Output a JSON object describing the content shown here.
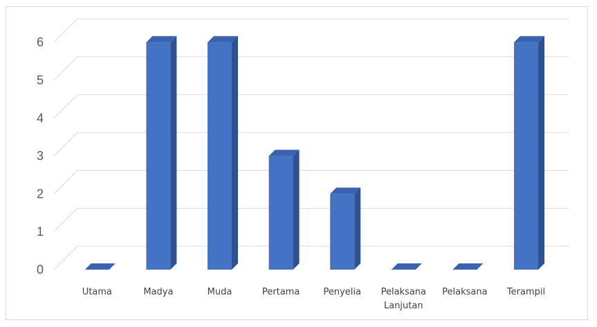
{
  "chart_data": {
    "type": "bar",
    "style": "3d-column",
    "categories": [
      [
        "Utama"
      ],
      [
        "Madya"
      ],
      [
        "Muda"
      ],
      [
        "Pertama"
      ],
      [
        "Penyelia"
      ],
      [
        "Pelaksana",
        "Lanjutan"
      ],
      [
        "Pelaksana"
      ],
      [
        "Terampil"
      ]
    ],
    "values": [
      0,
      6,
      6,
      3,
      2,
      0,
      0,
      6
    ],
    "ylim": [
      0,
      6
    ],
    "yticks": [
      "0",
      "1",
      "2",
      "3",
      "4",
      "5",
      "6"
    ],
    "grid": true,
    "legend": "none",
    "colors": {
      "bar_front": "#4472c4",
      "bar_side": "#2f528f",
      "bar_top": "#3b62b0",
      "grid": "#d9d9d9"
    }
  }
}
